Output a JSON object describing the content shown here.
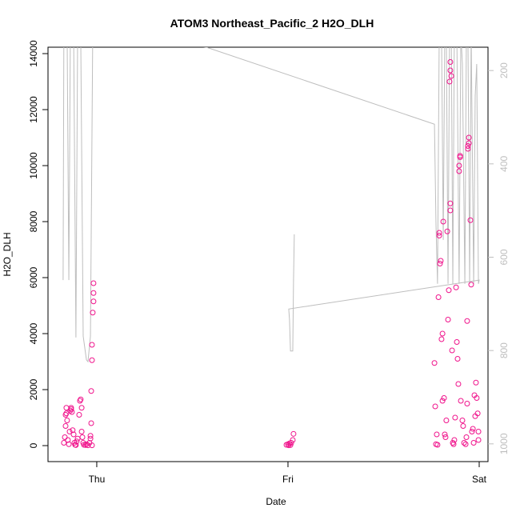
{
  "chart_data": {
    "type": "scatter",
    "title": "ATOM3 Northeast_Pacific_2 H2O_DLH",
    "x_label": "Date",
    "y_label": "H2O_DLH",
    "xlim": [
      -0.255,
      2.046
    ],
    "xticks": [
      {
        "value": 0,
        "label": "Thu"
      },
      {
        "value": 1,
        "label": "Fri"
      },
      {
        "value": 2,
        "label": "Sat"
      }
    ],
    "ylim": [
      -571,
      14229
    ],
    "yticks": [
      0,
      2000,
      4000,
      6000,
      8000,
      10000,
      12000,
      14000
    ],
    "y2lim": [
      1038,
      150
    ],
    "y2ticks": [
      200,
      400,
      600,
      800,
      1000
    ],
    "y2_color": "#bebebe",
    "series": [
      {
        "type": "scatter",
        "color": "#f0148c",
        "x": [
          -0.172,
          -0.167,
          -0.163,
          -0.163,
          -0.159,
          -0.159,
          -0.155,
          -0.151,
          -0.146,
          -0.142,
          -0.138,
          -0.134,
          -0.134,
          -0.13,
          -0.126,
          -0.121,
          -0.117,
          -0.113,
          -0.109,
          -0.105,
          -0.1,
          -0.092,
          -0.088,
          -0.084,
          -0.079,
          -0.079,
          -0.075,
          -0.071,
          -0.067,
          -0.059,
          -0.054,
          -0.046,
          -0.038,
          -0.033,
          -0.033,
          -0.029,
          -0.029,
          -0.025,
          -0.025,
          -0.021,
          -0.017,
          -0.017,
          -0.017,
          -0.025,
          0.992,
          1.0,
          1.004,
          1.008,
          1.013,
          1.017,
          1.025,
          1.029,
          1.766,
          1.77,
          1.774,
          1.782,
          1.787,
          1.791,
          1.791,
          1.795,
          1.799,
          1.803,
          1.808,
          1.812,
          1.816,
          1.82,
          1.824,
          1.833,
          1.837,
          1.841,
          1.849,
          1.849,
          1.845,
          1.849,
          1.849,
          1.854,
          1.858,
          1.862,
          1.866,
          1.87,
          1.879,
          1.883,
          1.887,
          1.891,
          1.895,
          1.895,
          1.9,
          1.9,
          1.904,
          1.912,
          1.916,
          1.921,
          1.929,
          1.933,
          1.937,
          1.937,
          1.941,
          1.941,
          1.946,
          1.946,
          1.954,
          1.958,
          1.962,
          1.967,
          1.971,
          1.975,
          1.979,
          1.983,
          1.987,
          1.992,
          1.996,
          1.996,
          1.778,
          1.808,
          1.828,
          1.874
        ],
        "values": [
          100,
          300,
          700,
          1100,
          1150,
          1350,
          900,
          200,
          50,
          500,
          1250,
          1300,
          1350,
          1200,
          550,
          400,
          100,
          30,
          20,
          150,
          250,
          1100,
          1600,
          1650,
          1350,
          500,
          300,
          100,
          30,
          20,
          50,
          10,
          100,
          350,
          250,
          800,
          1950,
          3050,
          3600,
          4750,
          5150,
          5450,
          5800,
          10,
          30,
          50,
          10,
          80,
          20,
          100,
          200,
          420,
          2950,
          1400,
          50,
          30,
          5300,
          7500,
          7600,
          6500,
          6600,
          3800,
          4000,
          8000,
          1700,
          400,
          300,
          7650,
          4500,
          5550,
          8400,
          8650,
          13000,
          13400,
          13700,
          13200,
          3400,
          100,
          50,
          200,
          5650,
          3700,
          3100,
          2200,
          9800,
          10000,
          10300,
          10350,
          1600,
          900,
          700,
          100,
          50,
          300,
          1500,
          4450,
          10600,
          10700,
          10800,
          11000,
          8050,
          5750,
          500,
          600,
          100,
          1800,
          1050,
          2250,
          1700,
          1150,
          200,
          500,
          400,
          1600,
          900,
          1000
        ]
      },
      {
        "type": "line",
        "axis": "y2",
        "color": "#bebebe",
        "x": [
          -0.176,
          -0.172,
          -0.155,
          -0.146,
          -0.138,
          -0.121,
          -0.109,
          -0.1,
          -0.084,
          -0.071,
          -0.054,
          -0.046,
          -0.033,
          -0.021,
          -0.017,
          0.573,
          1.766,
          1.774,
          1.782,
          1.791,
          1.803,
          1.812,
          1.82,
          1.828,
          1.837,
          1.845,
          1.854,
          1.862,
          1.87,
          1.883,
          1.895,
          1.904,
          1.912,
          1.925,
          1.933,
          1.941,
          1.95,
          1.958,
          1.971,
          1.979,
          1.987,
          1.996,
          2.0,
          1.004,
          1.008,
          1.013,
          1.025,
          1.029,
          1.033
        ],
        "values": [
          649,
          118,
          118,
          649,
          118,
          118,
          772,
          118,
          118,
          769,
          820,
          824,
          769,
          118,
          118,
          150,
          315,
          529,
          657,
          118,
          118,
          563,
          118,
          118,
          657,
          118,
          118,
          657,
          118,
          118,
          657,
          118,
          186,
          657,
          118,
          118,
          657,
          118,
          657,
          255,
          186,
          657,
          649,
          711,
          734,
          801,
          801,
          649,
          551
        ]
      }
    ]
  }
}
